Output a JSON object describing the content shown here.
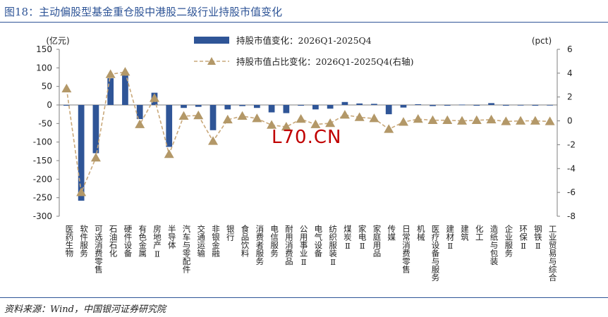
{
  "figure": {
    "title": "图18：主动偏股型基金重仓股中港股二级行业持股市值变化",
    "source": "资料来源：Wind，中国银河证券研究院",
    "watermark": "L70.CN"
  },
  "colors": {
    "bar": "#2f5597",
    "line": "#c9a87a",
    "marker": "#b39868",
    "axis": "#7f7f7f",
    "title": "#2f5597"
  },
  "chart_data": {
    "type": "bar",
    "grid": false,
    "legend_position": "top-center",
    "ylabel_left": "(亿元)",
    "ylabel_right": "(pct)",
    "ylim_left": [
      -300,
      150
    ],
    "yticks_left": [
      150,
      100,
      50,
      0,
      -50,
      -100,
      -150,
      -200,
      -250,
      -300
    ],
    "ylim_right": [
      -8,
      6
    ],
    "yticks_right": [
      6,
      4,
      2,
      0,
      -2,
      -4,
      -6,
      -8
    ],
    "categories": [
      "医药生物",
      "软件服务",
      "可选消费零售",
      "石油石化",
      "硬件设备",
      "有色金属",
      "房地产Ⅱ",
      "半导体",
      "汽车与零配件",
      "交通运输",
      "非银金融",
      "银行",
      "食品饮料",
      "消费者服务",
      "电信服务",
      "耐用消费品",
      "公用事业Ⅱ",
      "电气设备",
      "纺织服装Ⅱ",
      "煤炭Ⅱ",
      "家电Ⅱ",
      "家庭用品",
      "传媒",
      "日常消费零售",
      "机械",
      "医疗设备与服务",
      "建材Ⅱ",
      "建筑",
      "化工",
      "造纸与包装",
      "企业服务",
      "环保Ⅱ",
      "钢铁Ⅱ",
      "工业贸易与综合"
    ],
    "series": [
      {
        "name": "持股市值变化：2026Q1-2025Q4",
        "type": "bar",
        "axis": "left",
        "values": [
          -2,
          -258,
          -130,
          72,
          83,
          -38,
          33,
          -113,
          -8,
          -5,
          -68,
          -12,
          -3,
          -8,
          -20,
          -22,
          -2,
          -12,
          -10,
          8,
          4,
          3,
          -25,
          -7,
          2,
          -3,
          -2,
          1,
          -2,
          5,
          -2,
          -1,
          -2,
          -1
        ]
      },
      {
        "name": "持股市值占比变化：2026Q1-2025Q4(右轴)",
        "type": "line",
        "axis": "right",
        "values": [
          2.7,
          -6.0,
          -3.1,
          3.9,
          4.1,
          -0.3,
          1.9,
          -2.8,
          0.4,
          0.45,
          -1.7,
          0.1,
          0.4,
          0.2,
          -0.35,
          -0.5,
          0.15,
          -0.3,
          -0.2,
          0.5,
          0.3,
          0.2,
          -0.7,
          -0.1,
          0.15,
          0.05,
          0.05,
          0.0,
          0.05,
          0.1,
          -0.05,
          0.0,
          0.0,
          -0.05
        ]
      }
    ]
  }
}
